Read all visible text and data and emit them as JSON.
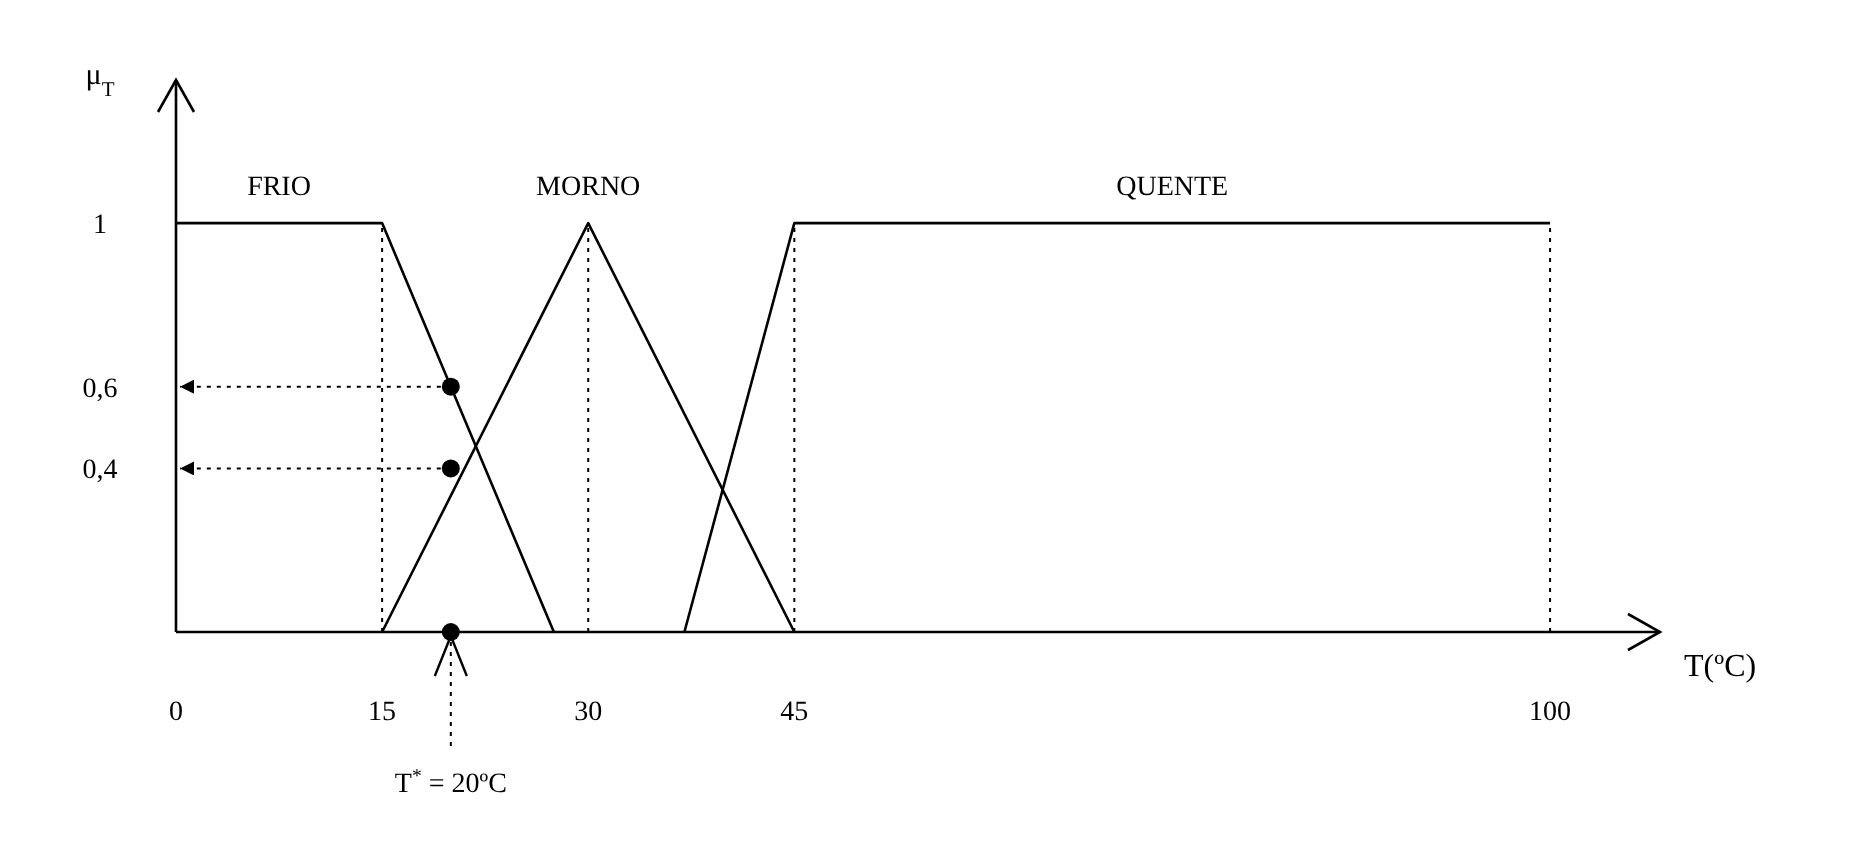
{
  "chart_data": {
    "type": "line",
    "xlabel": "T(ºC)",
    "ylabel": "μ$_{T}$",
    "xlim": [
      0,
      108
    ],
    "ylim": [
      0,
      1.35
    ],
    "xticks": [
      0,
      15,
      30,
      45,
      100
    ],
    "yticks": [
      {
        "value": 0.4,
        "label": "0,4"
      },
      {
        "value": 0.6,
        "label": "0,6"
      },
      {
        "value": 1,
        "label": "1"
      }
    ],
    "grid": false,
    "series": [
      {
        "name": "FRIO",
        "color": "#000000",
        "x": [
          0,
          15,
          27.5
        ],
        "values": [
          1,
          1,
          0
        ]
      },
      {
        "name": "MORNO",
        "color": "#000000",
        "x": [
          15,
          30,
          45
        ],
        "values": [
          0,
          1,
          0
        ]
      },
      {
        "name": "QUENTE",
        "color": "#000000",
        "x": [
          37,
          45,
          100
        ],
        "values": [
          0,
          1,
          1
        ]
      },
      {
        "type": "scatter",
        "marker": "circle",
        "color": "#000000",
        "x": [
          20,
          20,
          20
        ],
        "values": [
          0.6,
          0.4,
          0
        ]
      }
    ],
    "ref_lines": [
      {
        "axis": "x",
        "value": 15,
        "line_style": "dotted"
      },
      {
        "axis": "x",
        "value": 30,
        "line_style": "dotted"
      },
      {
        "axis": "x",
        "value": 45,
        "line_style": "dotted"
      },
      {
        "axis": "x",
        "value": 100,
        "line_style": "dotted"
      },
      {
        "axis": "x",
        "value": 20,
        "label": "T$^{*}$ = 20ºC",
        "line_style": "dotted"
      },
      {
        "axis": "y",
        "value": 0.6,
        "line_style": "dotted"
      },
      {
        "axis": "y",
        "value": 0.4,
        "line_style": "dotted"
      }
    ]
  }
}
